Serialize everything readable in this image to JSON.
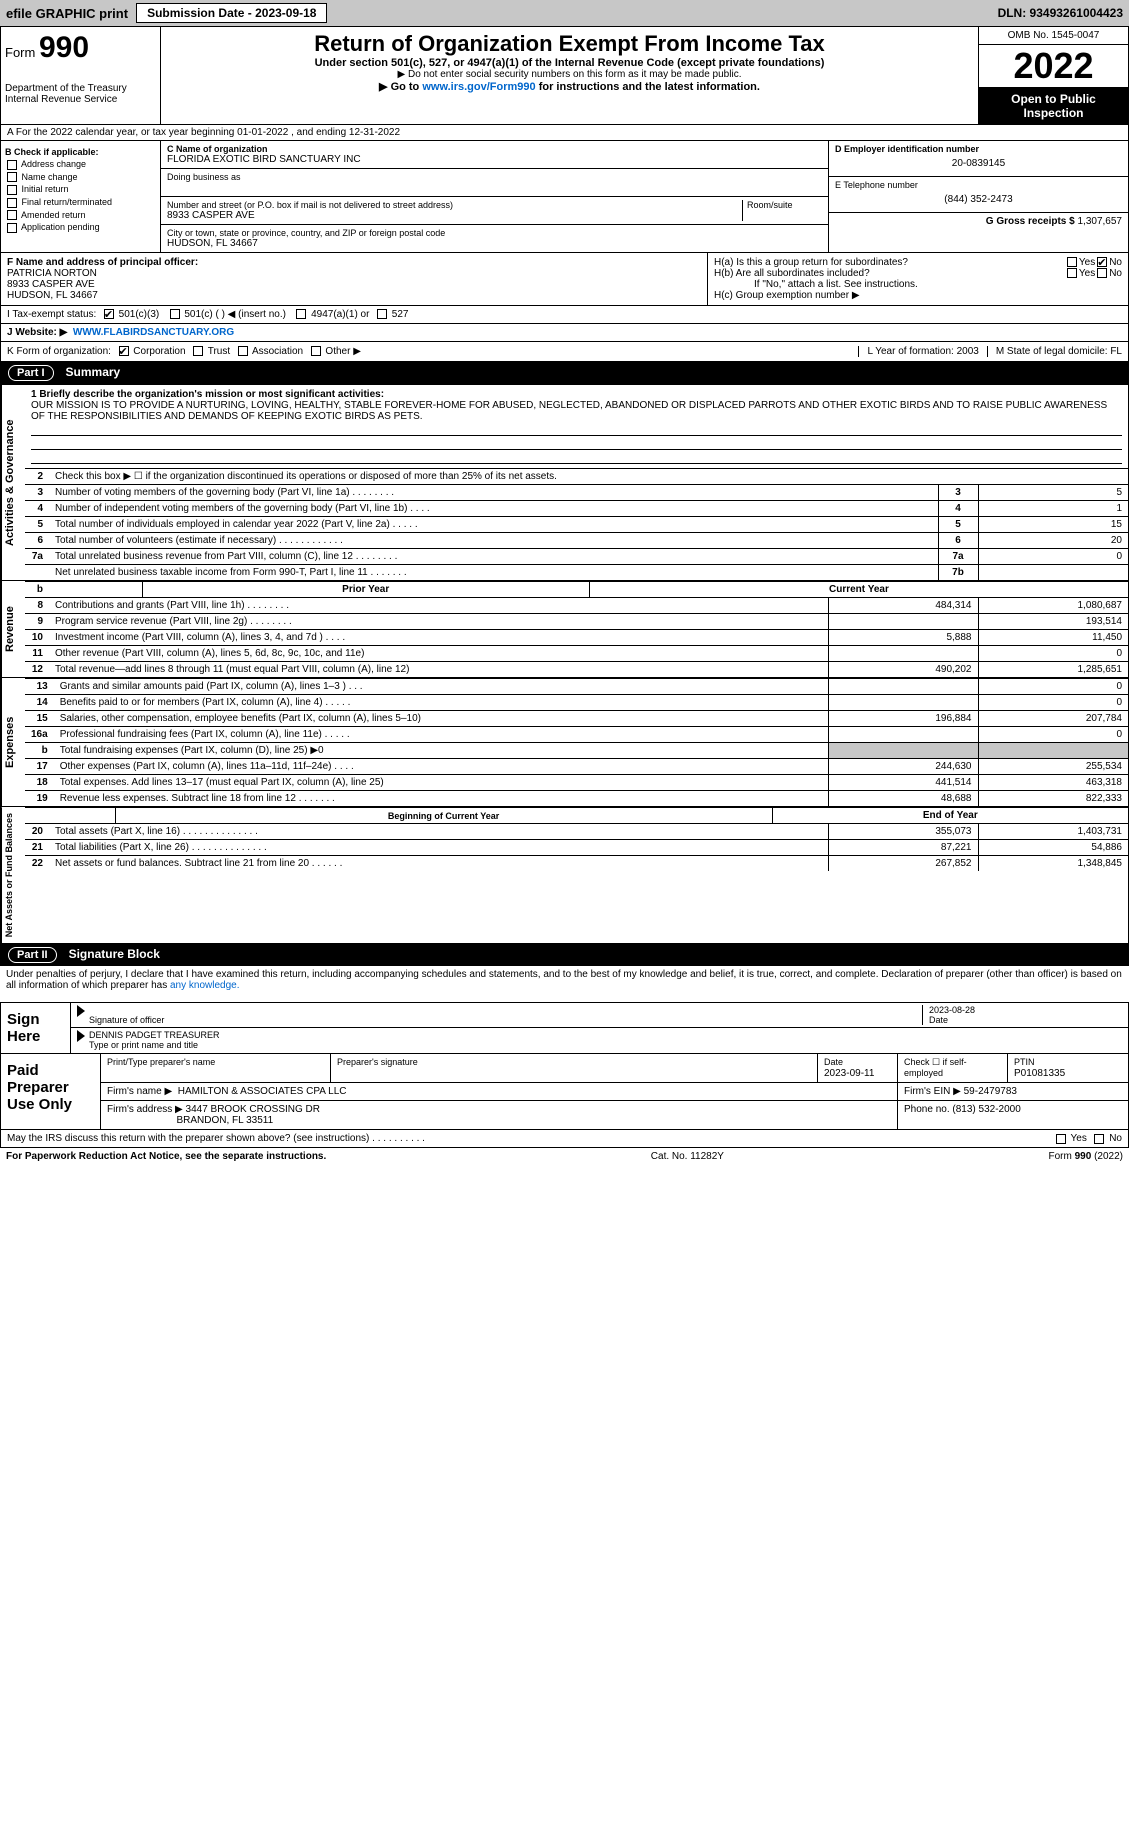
{
  "topbar": {
    "efile": "efile GRAPHIC print",
    "submission": "Submission Date - 2023-09-18",
    "dln": "DLN: 93493261004423"
  },
  "header": {
    "form_prefix": "Form",
    "form_number": "990",
    "dept": "Department of the Treasury",
    "irs": "Internal Revenue Service",
    "title": "Return of Organization Exempt From Income Tax",
    "subtitle": "Under section 501(c), 527, or 4947(a)(1) of the Internal Revenue Code (except private foundations)",
    "note": "▶ Do not enter social security numbers on this form as it may be made public.",
    "goto_prefix": "▶ Go to ",
    "goto_link": "www.irs.gov/Form990",
    "goto_suffix": " for instructions and the latest information.",
    "omb": "OMB No. 1545-0047",
    "year": "2022",
    "open": "Open to Public Inspection"
  },
  "row_a": "A For the 2022 calendar year, or tax year beginning 01-01-2022    , and ending 12-31-2022",
  "col_b": {
    "label": "B Check if applicable:",
    "items": [
      "Address change",
      "Name change",
      "Initial return",
      "Final return/terminated",
      "Amended return",
      "Application pending"
    ]
  },
  "col_c": {
    "name_label": "C Name of organization",
    "name": "FLORIDA EXOTIC BIRD SANCTUARY INC",
    "dba_label": "Doing business as",
    "street_label": "Number and street (or P.O. box if mail is not delivered to street address)",
    "room_label": "Room/suite",
    "street": "8933 CASPER AVE",
    "city_label": "City or town, state or province, country, and ZIP or foreign postal code",
    "city": "HUDSON, FL  34667"
  },
  "col_de": {
    "d_label": "D Employer identification number",
    "d_val": "20-0839145",
    "e_label": "E Telephone number",
    "e_val": "(844) 352-2473",
    "g_label": "G Gross receipts $",
    "g_val": "1,307,657"
  },
  "row_f": {
    "label": "F  Name and address of principal officer:",
    "name": "PATRICIA NORTON",
    "street": "8933 CASPER AVE",
    "city": "HUDSON, FL  34667"
  },
  "row_h": {
    "ha": "H(a)  Is this a group return for subordinates?",
    "hb": "H(b)  Are all subordinates included?",
    "hb_note": "If \"No,\" attach a list. See instructions.",
    "hc": "H(c)  Group exemption number ▶",
    "yes": "Yes",
    "no": "No"
  },
  "row_i": {
    "label": "I    Tax-exempt status:",
    "opts": [
      "501(c)(3)",
      "501(c) (   ) ◀ (insert no.)",
      "4947(a)(1) or",
      "527"
    ]
  },
  "row_j": {
    "label": "J   Website: ▶",
    "val": "WWW.FLABIRDSANCTUARY.ORG"
  },
  "row_k": {
    "label": "K Form of organization:",
    "opts": [
      "Corporation",
      "Trust",
      "Association",
      "Other ▶"
    ]
  },
  "row_l": {
    "l": "L Year of formation: 2003",
    "m": "M State of legal domicile: FL"
  },
  "parts": {
    "p1": "Part I",
    "p1t": "Summary",
    "p2": "Part II",
    "p2t": "Signature Block"
  },
  "vlabels": {
    "ag": "Activities & Governance",
    "rev": "Revenue",
    "exp": "Expenses",
    "na": "Net Assets or\nFund Balances"
  },
  "mission": {
    "label": "1  Briefly describe the organization's mission or most significant activities:",
    "text": "OUR MISSION IS TO PROVIDE A NURTURING, LOVING, HEALTHY, STABLE FOREVER-HOME FOR ABUSED, NEGLECTED, ABANDONED OR DISPLACED PARROTS AND OTHER EXOTIC BIRDS AND TO RAISE PUBLIC AWARENESS OF THE RESPONSIBILITIES AND DEMANDS OF KEEPING EXOTIC BIRDS AS PETS."
  },
  "line2": "Check this box ▶ ☐  if the organization discontinued its operations or disposed of more than 25% of its net assets.",
  "ag_rows": [
    {
      "n": "3",
      "t": "Number of voting members of the governing body (Part VI, line 1a)   .    .    .    .    .    .    .    .",
      "b": "3",
      "v": "5"
    },
    {
      "n": "4",
      "t": "Number of independent voting members of the governing body (Part VI, line 1b)   .    .    .    .",
      "b": "4",
      "v": "1"
    },
    {
      "n": "5",
      "t": "Total number of individuals employed in calendar year 2022 (Part V, line 2a)   .    .    .    .    .",
      "b": "5",
      "v": "15"
    },
    {
      "n": "6",
      "t": "Total number of volunteers (estimate if necessary)   .    .    .    .    .    .    .    .    .    .    .    .",
      "b": "6",
      "v": "20"
    },
    {
      "n": "7a",
      "t": "Total unrelated business revenue from Part VIII, column (C), line 12   .    .    .    .    .    .    .    .",
      "b": "7a",
      "v": "0"
    },
    {
      "n": "",
      "t": "Net unrelated business taxable income from Form 990-T, Part I, line 11   .    .    .    .    .    .    .",
      "b": "7b",
      "v": ""
    }
  ],
  "yr_hdr": {
    "py": "Prior Year",
    "cy": "Current Year"
  },
  "rev_rows": [
    {
      "n": "8",
      "t": "Contributions and grants (Part VIII, line 1h)   .    .    .    .    .    .    .    .",
      "py": "484,314",
      "cy": "1,080,687"
    },
    {
      "n": "9",
      "t": "Program service revenue (Part VIII, line 2g)   .    .    .    .    .    .    .    .",
      "py": "",
      "cy": "193,514"
    },
    {
      "n": "10",
      "t": "Investment income (Part VIII, column (A), lines 3, 4, and 7d )   .    .    .    .",
      "py": "5,888",
      "cy": "11,450"
    },
    {
      "n": "11",
      "t": "Other revenue (Part VIII, column (A), lines 5, 6d, 8c, 9c, 10c, and 11e)",
      "py": "",
      "cy": "0"
    },
    {
      "n": "12",
      "t": "Total revenue—add lines 8 through 11 (must equal Part VIII, column (A), line 12)",
      "py": "490,202",
      "cy": "1,285,651"
    }
  ],
  "exp_rows": [
    {
      "n": "13",
      "t": "Grants and similar amounts paid (Part IX, column (A), lines 1–3 )   .    .    .",
      "py": "",
      "cy": "0"
    },
    {
      "n": "14",
      "t": "Benefits paid to or for members (Part IX, column (A), line 4)   .    .    .    .    .",
      "py": "",
      "cy": "0"
    },
    {
      "n": "15",
      "t": "Salaries, other compensation, employee benefits (Part IX, column (A), lines 5–10)",
      "py": "196,884",
      "cy": "207,784"
    },
    {
      "n": "16a",
      "t": "Professional fundraising fees (Part IX, column (A), line 11e)   .    .    .    .    .",
      "py": "",
      "cy": "0"
    },
    {
      "n": "b",
      "t": "Total fundraising expenses (Part IX, column (D), line 25) ▶0",
      "py": "GREY",
      "cy": "GREY"
    },
    {
      "n": "17",
      "t": "Other expenses (Part IX, column (A), lines 11a–11d, 11f–24e)   .    .    .    .",
      "py": "244,630",
      "cy": "255,534"
    },
    {
      "n": "18",
      "t": "Total expenses. Add lines 13–17 (must equal Part IX, column (A), line 25)",
      "py": "441,514",
      "cy": "463,318"
    },
    {
      "n": "19",
      "t": "Revenue less expenses. Subtract line 18 from line 12   .    .    .    .    .    .    .",
      "py": "48,688",
      "cy": "822,333"
    }
  ],
  "na_hdr": {
    "b": "Beginning of Current Year",
    "e": "End of Year"
  },
  "na_rows": [
    {
      "n": "20",
      "t": "Total assets (Part X, line 16)   .    .    .    .    .    .    .    .    .    .    .    .    .    .",
      "py": "355,073",
      "cy": "1,403,731"
    },
    {
      "n": "21",
      "t": "Total liabilities (Part X, line 26)   .    .    .    .    .    .    .    .    .    .    .    .    .    .",
      "py": "87,221",
      "cy": "54,886"
    },
    {
      "n": "22",
      "t": "Net assets or fund balances. Subtract line 21 from line 20   .    .    .    .    .    .",
      "py": "267,852",
      "cy": "1,348,845"
    }
  ],
  "sig": {
    "decl": "Under penalties of perjury, I declare that I have examined this return, including accompanying schedules and statements, and to the best of my knowledge and belief, it is true, correct, and complete. Declaration of preparer (other than officer) is based on all information of which preparer has ",
    "decl_link": "any knowledge.",
    "sign_here": "Sign Here",
    "sig_officer": "Signature of officer",
    "date": "Date",
    "date_val": "2023-08-28",
    "name_title": "DENNIS PADGET TREASURER",
    "type_name": "Type or print name and title"
  },
  "paid": {
    "label": "Paid Preparer Use Only",
    "h1": "Print/Type preparer's name",
    "h2": "Preparer's signature",
    "h3": "Date",
    "h4": "Check ☐ if self-employed",
    "h5": "PTIN",
    "date": "2023-09-11",
    "ptin": "P01081335",
    "firm_label": "Firm's name    ▶",
    "firm": "HAMILTON & ASSOCIATES CPA LLC",
    "ein_label": "Firm's EIN ▶",
    "ein": "59-2479783",
    "addr_label": "Firm's address ▶",
    "addr1": "3447 BROOK CROSSING DR",
    "addr2": "BRANDON, FL  33511",
    "phone_label": "Phone no.",
    "phone": "(813) 532-2000"
  },
  "discuss": "May the IRS discuss this return with the preparer shown above? (see instructions)   .    .    .    .    .    .    .    .    .    .",
  "footer": {
    "l": "For Paperwork Reduction Act Notice, see the separate instructions.",
    "c": "Cat. No. 11282Y",
    "r": "Form 990 (2022)"
  }
}
